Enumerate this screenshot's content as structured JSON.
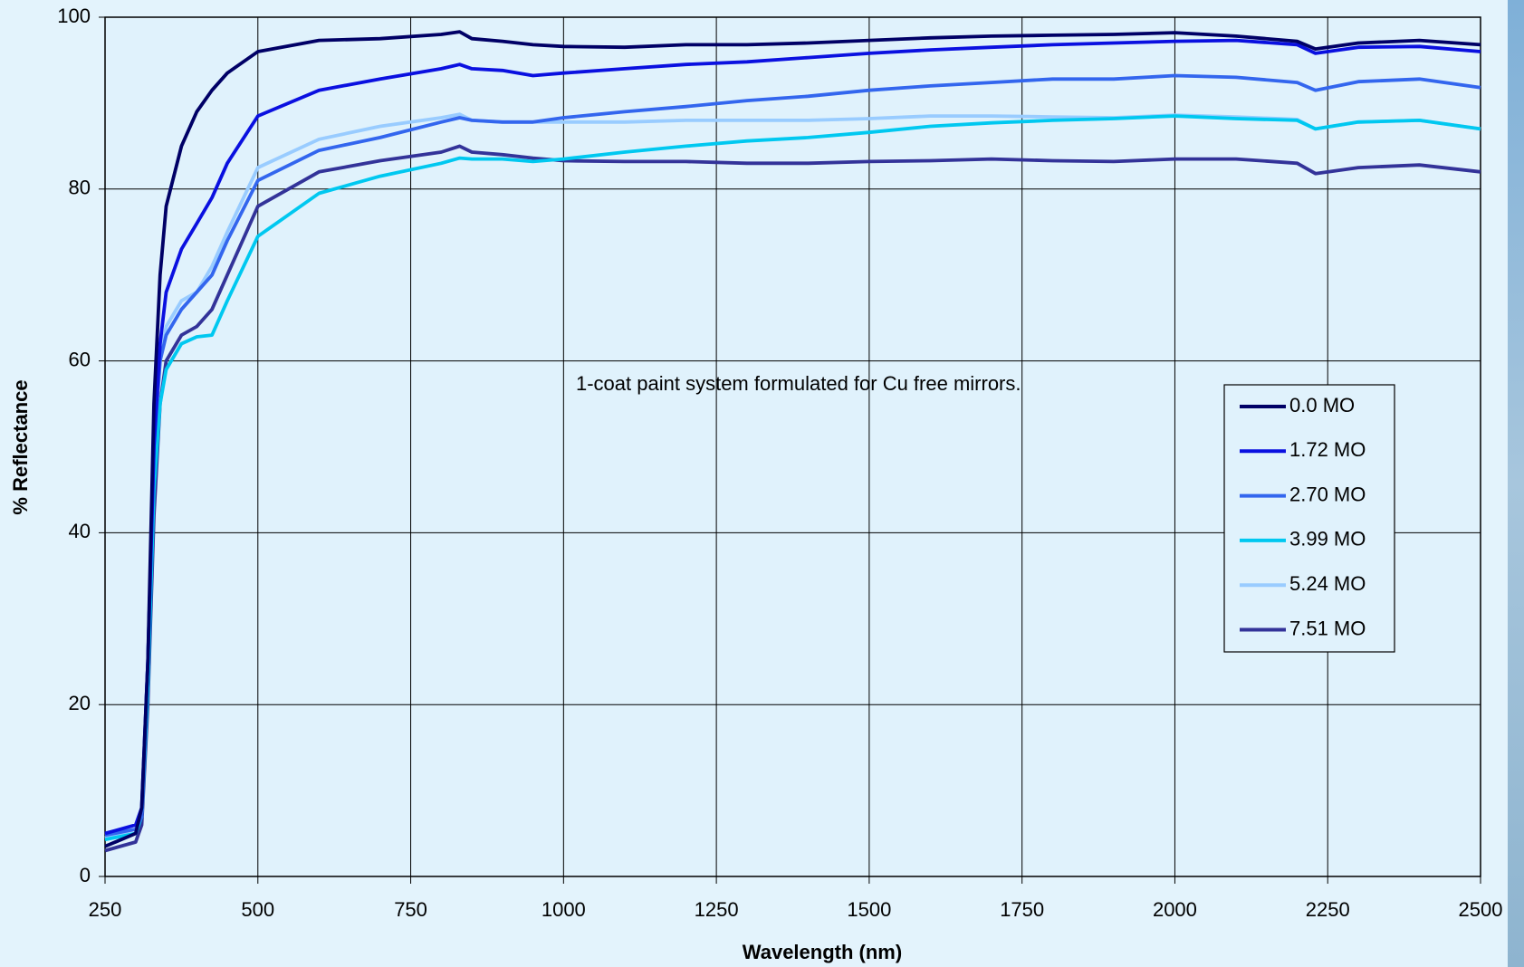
{
  "chart_data": {
    "type": "line",
    "annotation": "1-coat paint system formulated for Cu free mirrors.",
    "x_label": "Wavelength (nm)",
    "y_label": "% Reflectance",
    "x": [
      250,
      300,
      310,
      320,
      330,
      340,
      350,
      375,
      400,
      425,
      450,
      500,
      600,
      700,
      800,
      830,
      850,
      900,
      950,
      1000,
      1100,
      1200,
      1300,
      1400,
      1500,
      1600,
      1700,
      1800,
      1900,
      2000,
      2100,
      2200,
      2230,
      2300,
      2400,
      2500
    ],
    "series": [
      {
        "name": "0.0 MO",
        "color": "#000066",
        "values": [
          3.5,
          5,
          8,
          25,
          55,
          70,
          78,
          85,
          89,
          91.5,
          93.5,
          96,
          97.3,
          97.5,
          98,
          98.3,
          97.5,
          97.2,
          96.8,
          96.6,
          96.5,
          96.8,
          96.8,
          97,
          97.3,
          97.6,
          97.8,
          97.9,
          98,
          98.2,
          97.8,
          97.2,
          96.3,
          97,
          97.3,
          96.8
        ]
      },
      {
        "name": "1.72 MO",
        "color": "#0a10e0",
        "values": [
          5,
          6,
          8,
          25,
          50,
          62,
          68,
          73,
          76,
          79,
          83,
          88.5,
          91.5,
          92.8,
          94,
          94.5,
          94,
          93.8,
          93.2,
          93.5,
          94,
          94.5,
          94.8,
          95.3,
          95.8,
          96.2,
          96.5,
          96.8,
          97,
          97.2,
          97.3,
          96.8,
          95.8,
          96.5,
          96.6,
          96
        ]
      },
      {
        "name": "2.70 MO",
        "color": "#3366ee",
        "values": [
          4.8,
          5.5,
          7,
          25,
          50,
          60,
          63,
          66,
          68,
          70,
          74,
          81,
          84.5,
          86,
          87.8,
          88.3,
          88,
          87.8,
          87.8,
          88.3,
          89,
          89.6,
          90.3,
          90.8,
          91.5,
          92,
          92.4,
          92.8,
          92.8,
          93.2,
          93,
          92.4,
          91.5,
          92.5,
          92.8,
          91.8
        ]
      },
      {
        "name": "3.99 MO",
        "color": "#00c8f0",
        "values": [
          4.3,
          5,
          7,
          22,
          45,
          55,
          59,
          62,
          62.8,
          63,
          67,
          74.5,
          79.5,
          81.5,
          83,
          83.6,
          83.5,
          83.5,
          83.2,
          83.5,
          84.3,
          85,
          85.6,
          86,
          86.6,
          87.3,
          87.7,
          88,
          88.2,
          88.5,
          88.2,
          88,
          87,
          87.8,
          88,
          87
        ]
      },
      {
        "name": "5.24 MO",
        "color": "#99ccff",
        "values": [
          4.5,
          5.5,
          7,
          25,
          50,
          60,
          64,
          67,
          68,
          71,
          75,
          82.5,
          85.8,
          87.3,
          88.3,
          88.7,
          88,
          87.8,
          87.8,
          87.8,
          87.8,
          88,
          88,
          88,
          88.2,
          88.5,
          88.5,
          88.4,
          88.3,
          88.6,
          88.4,
          88.1,
          87,
          87.8,
          88,
          87
        ]
      },
      {
        "name": "7.51 MO",
        "color": "#333399",
        "values": [
          3,
          4,
          6,
          20,
          42,
          55,
          60,
          63,
          64,
          66,
          70,
          78,
          82,
          83.3,
          84.3,
          85,
          84.3,
          84,
          83.6,
          83.3,
          83.2,
          83.2,
          83,
          83,
          83.2,
          83.3,
          83.5,
          83.3,
          83.2,
          83.5,
          83.5,
          83,
          81.8,
          82.5,
          82.8,
          82
        ]
      }
    ],
    "xlim": [
      250,
      2500
    ],
    "xticks": [
      250,
      500,
      750,
      1000,
      1250,
      1500,
      1750,
      2000,
      2250,
      2500
    ],
    "ylim": [
      0,
      100
    ],
    "yticks": [
      0,
      20,
      40,
      60,
      80,
      100
    ],
    "grid": true,
    "legend": "right"
  }
}
